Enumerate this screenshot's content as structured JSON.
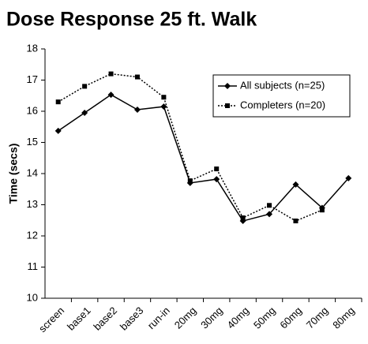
{
  "chart_data": {
    "type": "line",
    "title": "Dose Response 25 ft. Walk",
    "y_label": "Time (secs)",
    "categories": [
      "screen",
      "base1",
      "base2",
      "base3",
      "run-in",
      "20mg",
      "30mg",
      "40mg",
      "50mg",
      "60mg",
      "70mg",
      "80mg"
    ],
    "series": [
      {
        "name": "All subjects (n=25)",
        "color": "#000000",
        "line_style": "solid",
        "marker": "diamond",
        "values": [
          15.37,
          15.95,
          16.53,
          16.05,
          16.15,
          13.7,
          13.82,
          12.48,
          12.7,
          13.65,
          12.9,
          13.85
        ]
      },
      {
        "name": "Completers (n=20)",
        "color": "#000000",
        "line_style": "dotted",
        "marker": "square",
        "values": [
          16.3,
          16.8,
          17.2,
          17.1,
          16.45,
          13.77,
          14.15,
          12.58,
          12.98,
          12.48,
          12.83,
          null
        ]
      }
    ],
    "ylim": [
      10,
      18
    ],
    "yticks": [
      10,
      11,
      12,
      13,
      14,
      15,
      16,
      17,
      18
    ],
    "grid": false,
    "legend": "upper right"
  }
}
